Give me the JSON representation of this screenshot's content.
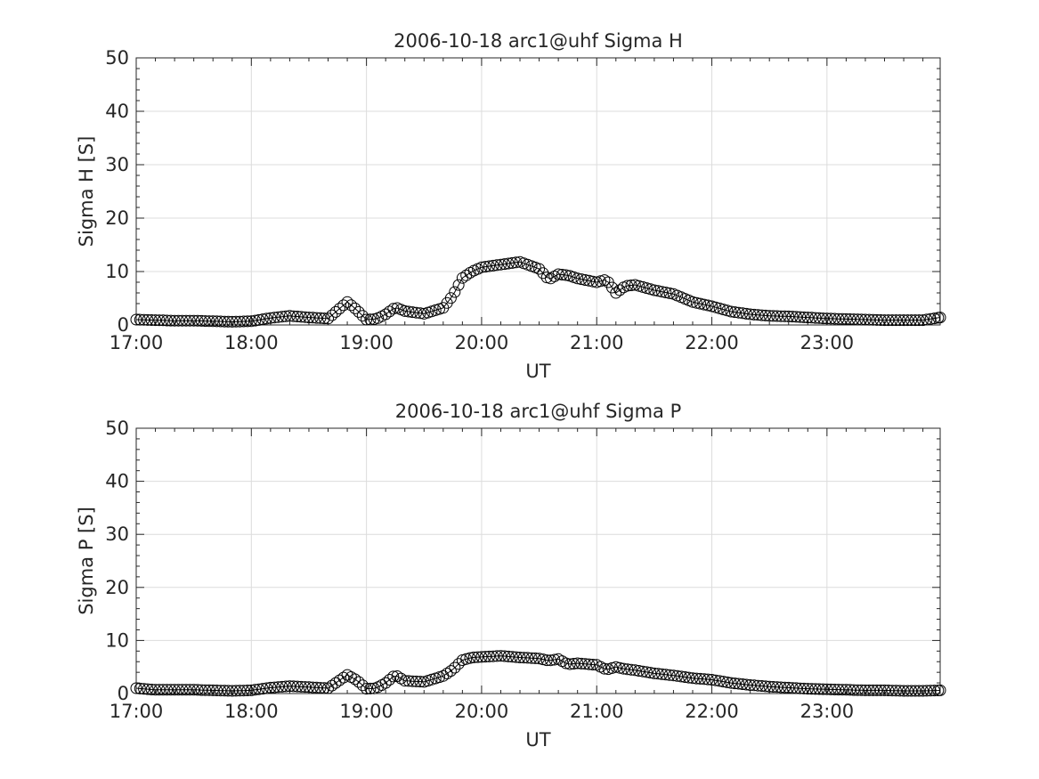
{
  "chart_data": [
    {
      "type": "line",
      "title": "2006-10-18  arc1@uhf Sigma H",
      "xlabel": "UT",
      "ylabel": "Sigma H [S]",
      "x_tick_labels": [
        "17:00",
        "18:00",
        "19:00",
        "20:00",
        "21:00",
        "22:00",
        "23:00"
      ],
      "y_tick_labels": [
        "0",
        "10",
        "20",
        "30",
        "40",
        "50"
      ],
      "xlim": [
        "17:00",
        "23:59"
      ],
      "ylim": [
        0,
        50
      ],
      "grid": true,
      "marker": "circle",
      "series": [
        {
          "x": [
            "17:00",
            "17:10",
            "17:20",
            "17:30",
            "17:40",
            "17:50",
            "18:00",
            "18:10",
            "18:20",
            "18:30",
            "18:40",
            "18:50",
            "18:55",
            "19:00",
            "19:05",
            "19:10",
            "19:15",
            "19:20",
            "19:30",
            "19:40",
            "19:45",
            "19:50",
            "19:55",
            "20:00",
            "20:10",
            "20:20",
            "20:30",
            "20:35",
            "20:40",
            "20:45",
            "20:50",
            "21:00",
            "21:05",
            "21:10",
            "21:15",
            "21:20",
            "21:30",
            "21:40",
            "21:50",
            "22:00",
            "22:10",
            "22:20",
            "22:30",
            "22:40",
            "22:50",
            "23:00",
            "23:10",
            "23:20",
            "23:30",
            "23:40",
            "23:50",
            "23:59"
          ],
          "y": [
            1.0,
            0.9,
            0.8,
            0.8,
            0.7,
            0.6,
            0.7,
            1.3,
            1.7,
            1.4,
            1.2,
            4.3,
            2.8,
            1.0,
            1.1,
            2.0,
            3.3,
            2.6,
            2.1,
            3.2,
            5.5,
            8.8,
            10.0,
            10.8,
            11.3,
            11.8,
            10.5,
            8.5,
            9.5,
            9.3,
            8.7,
            8.0,
            8.5,
            6.0,
            7.3,
            7.5,
            6.5,
            5.8,
            4.3,
            3.5,
            2.5,
            2.0,
            1.7,
            1.6,
            1.4,
            1.2,
            1.1,
            1.0,
            0.9,
            0.9,
            0.9,
            1.4
          ]
        }
      ]
    },
    {
      "type": "line",
      "title": "2006-10-18  arc1@uhf Sigma P",
      "xlabel": "UT",
      "ylabel": "Sigma P [S]",
      "x_tick_labels": [
        "17:00",
        "18:00",
        "19:00",
        "20:00",
        "21:00",
        "22:00",
        "23:00"
      ],
      "y_tick_labels": [
        "0",
        "10",
        "20",
        "30",
        "40",
        "50"
      ],
      "xlim": [
        "17:00",
        "23:59"
      ],
      "ylim": [
        0,
        50
      ],
      "grid": true,
      "marker": "circle",
      "series": [
        {
          "x": [
            "17:00",
            "17:10",
            "17:20",
            "17:30",
            "17:40",
            "17:50",
            "18:00",
            "18:10",
            "18:20",
            "18:30",
            "18:40",
            "18:50",
            "18:55",
            "19:00",
            "19:05",
            "19:10",
            "19:15",
            "19:20",
            "19:30",
            "19:40",
            "19:45",
            "19:50",
            "19:55",
            "20:00",
            "20:10",
            "20:20",
            "20:30",
            "20:35",
            "20:40",
            "20:45",
            "20:50",
            "21:00",
            "21:05",
            "21:10",
            "21:15",
            "21:20",
            "21:30",
            "21:40",
            "21:50",
            "22:00",
            "22:10",
            "22:20",
            "22:30",
            "22:40",
            "22:50",
            "23:00",
            "23:10",
            "23:20",
            "23:30",
            "23:40",
            "23:50",
            "23:59"
          ],
          "y": [
            1.0,
            0.7,
            0.7,
            0.7,
            0.6,
            0.5,
            0.6,
            1.1,
            1.4,
            1.2,
            1.0,
            3.5,
            2.5,
            0.9,
            1.0,
            2.0,
            3.5,
            2.4,
            2.2,
            3.3,
            4.5,
            6.3,
            6.8,
            6.9,
            7.1,
            6.8,
            6.6,
            6.2,
            6.5,
            5.5,
            5.7,
            5.4,
            4.5,
            5.0,
            4.6,
            4.4,
            3.8,
            3.4,
            2.9,
            2.6,
            2.0,
            1.6,
            1.3,
            1.1,
            0.9,
            0.8,
            0.7,
            0.6,
            0.6,
            0.5,
            0.5,
            0.6
          ]
        }
      ]
    }
  ]
}
